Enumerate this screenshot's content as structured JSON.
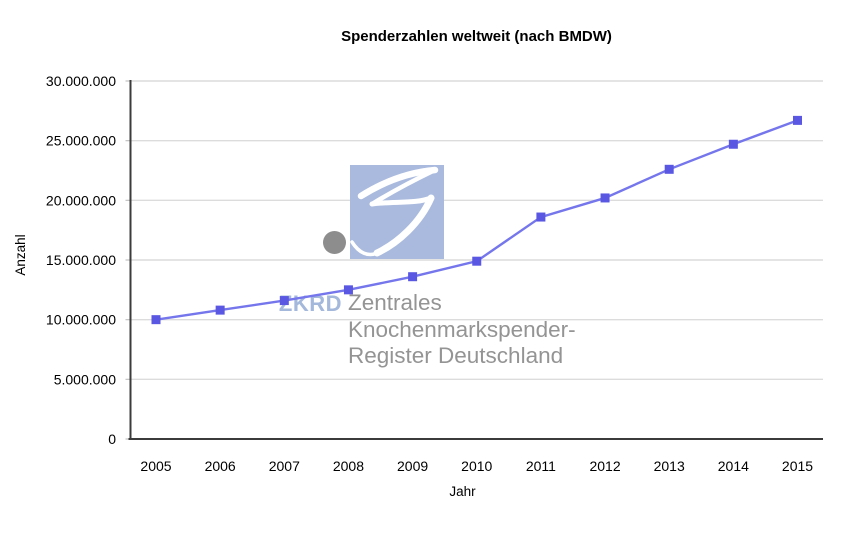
{
  "title": "Spenderzahlen weltweit (nach BMDW)",
  "chart_data": {
    "type": "line",
    "title": "Spenderzahlen weltweit (nach BMDW)",
    "xlabel": "Jahr",
    "ylabel": "Anzahl",
    "categories": [
      "2005",
      "2006",
      "2007",
      "2008",
      "2009",
      "2010",
      "2011",
      "2012",
      "2013",
      "2014",
      "2015"
    ],
    "series": [
      {
        "name": "Spenderzahlen weltweit",
        "values": [
          10000000,
          10800000,
          11600000,
          12500000,
          13600000,
          14900000,
          18600000,
          20200000,
          22600000,
          24700000,
          26700000
        ]
      }
    ],
    "ylim": [
      0,
      30000000
    ],
    "ytick_step": 5000000,
    "ytick_labels": [
      "0",
      "5.000.000",
      "10.000.000",
      "15.000.000",
      "20.000.000",
      "25.000.000",
      "30.000.000"
    ],
    "grid": true,
    "legend": "none",
    "line_color": "#7576ec",
    "marker_color": "#5a57e3",
    "marker_shape": "square"
  },
  "watermark": {
    "wordmark": "ZKRD",
    "name_line1": "Zentrales",
    "name_line2": "Knochenmarkspender-",
    "name_line3": "Register Deutschland",
    "logo_blue": "#a9bade",
    "wordmark_blue": "#a3b8db",
    "text_gray": "#949494",
    "dot_gray": "#8d8d8d"
  }
}
